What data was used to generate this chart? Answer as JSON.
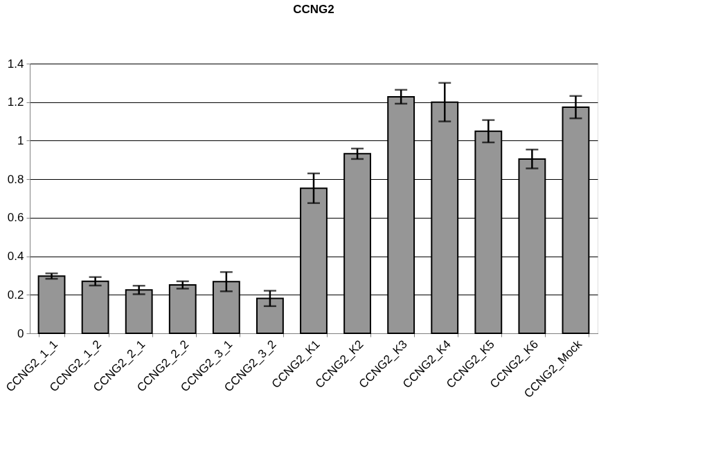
{
  "chart_data": {
    "type": "bar",
    "title": "CCNG2",
    "categories": [
      "CCNG2_1_1",
      "CCNG2_1_2",
      "CCNG2_2_1",
      "CCNG2_2_2",
      "CCNG2_3_1",
      "CCNG2_3_2",
      "CCNG2_K1",
      "CCNG2_K2",
      "CCNG2_K3",
      "CCNG2_K4",
      "CCNG2_K5",
      "CCNG2_K6",
      "CCNG2_Mock"
    ],
    "values": [
      0.297,
      0.27,
      0.225,
      0.251,
      0.268,
      0.181,
      0.753,
      0.932,
      1.228,
      1.2,
      1.049,
      0.905,
      1.174
    ],
    "errors": [
      0.014,
      0.022,
      0.022,
      0.019,
      0.05,
      0.04,
      0.077,
      0.027,
      0.036,
      0.1,
      0.058,
      0.049,
      0.058
    ],
    "color": "#969696",
    "ylim": [
      0,
      1.4
    ],
    "yticks": [
      0,
      0.2,
      0.4,
      0.6,
      0.8,
      1,
      1.2,
      1.4
    ],
    "grid": "y"
  }
}
